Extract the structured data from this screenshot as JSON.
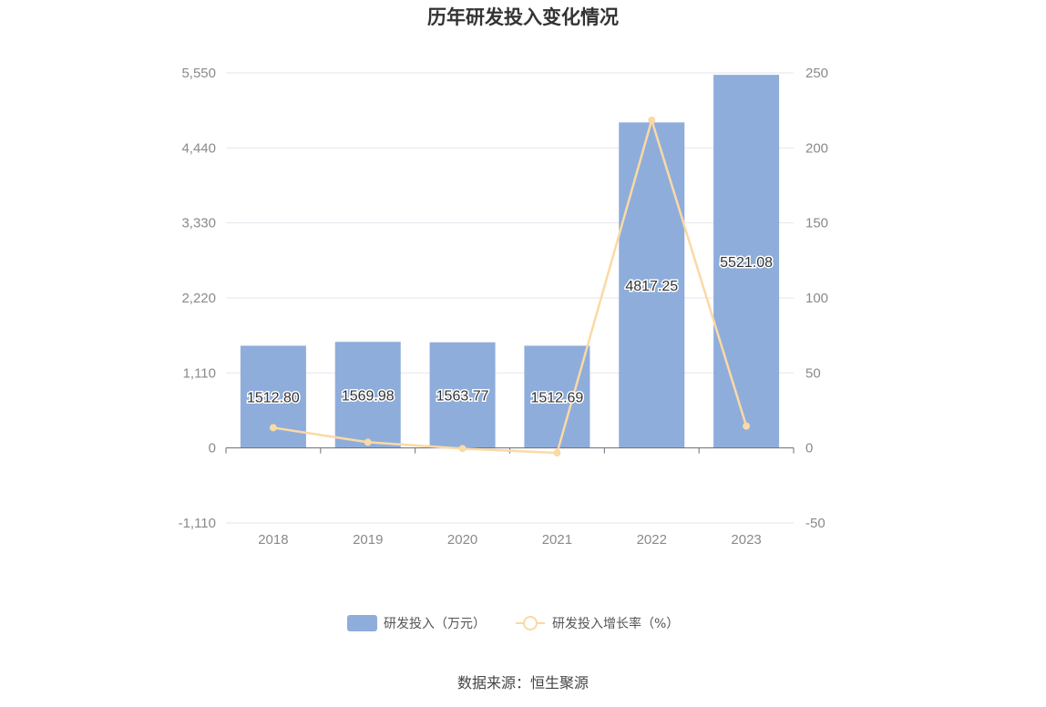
{
  "chart_data": {
    "type": "bar",
    "title": "历年研发投入变化情况",
    "categories": [
      "2018",
      "2019",
      "2020",
      "2021",
      "2022",
      "2023"
    ],
    "series": [
      {
        "name": "研发投入（万元）",
        "type": "bar",
        "axis": "left",
        "color": "#8eaddb",
        "values": [
          1512.8,
          1569.98,
          1563.77,
          1512.69,
          4817.25,
          5521.08
        ],
        "labels": [
          "1512.80",
          "1569.98",
          "1563.77",
          "1512.69",
          "4817.25",
          "5521.08"
        ]
      },
      {
        "name": "研发投入增长率（%）",
        "type": "line",
        "axis": "right",
        "color": "#fbd9a5",
        "values": [
          13.5,
          3.8,
          -0.4,
          -3.3,
          218.5,
          14.6
        ]
      }
    ],
    "y_left": {
      "ticks": [
        "5,550",
        "4,440",
        "3,330",
        "2,220",
        "1,110",
        "0",
        "-1,110"
      ],
      "min": -1110,
      "max": 5550
    },
    "y_right": {
      "ticks": [
        "250",
        "200",
        "150",
        "100",
        "50",
        "0",
        "-50"
      ],
      "min": -50,
      "max": 250
    },
    "grid": true,
    "legend_position": "bottom"
  },
  "source": "数据来源：恒生聚源"
}
